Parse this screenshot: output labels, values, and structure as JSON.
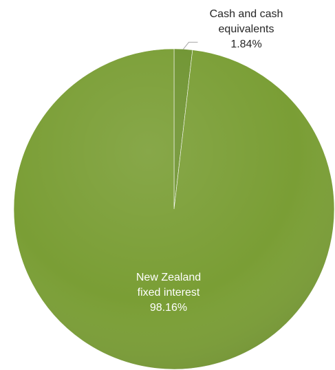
{
  "chart_data": {
    "type": "pie",
    "title": "",
    "slices": [
      {
        "label_lines": [
          "Cash and cash",
          "equivalents"
        ],
        "value_label": "1.84%",
        "value": 1.84,
        "color": "#6f9431"
      },
      {
        "label_lines": [
          "New Zealand",
          "fixed interest"
        ],
        "value_label": "98.16%",
        "value": 98.16,
        "color": "#7a9e35"
      }
    ],
    "legend": "none",
    "data_labels": true,
    "label_text_color_outside": "#262626",
    "label_text_color_inside": "#ffffff",
    "leader_line_color": "#a6a6a6"
  }
}
